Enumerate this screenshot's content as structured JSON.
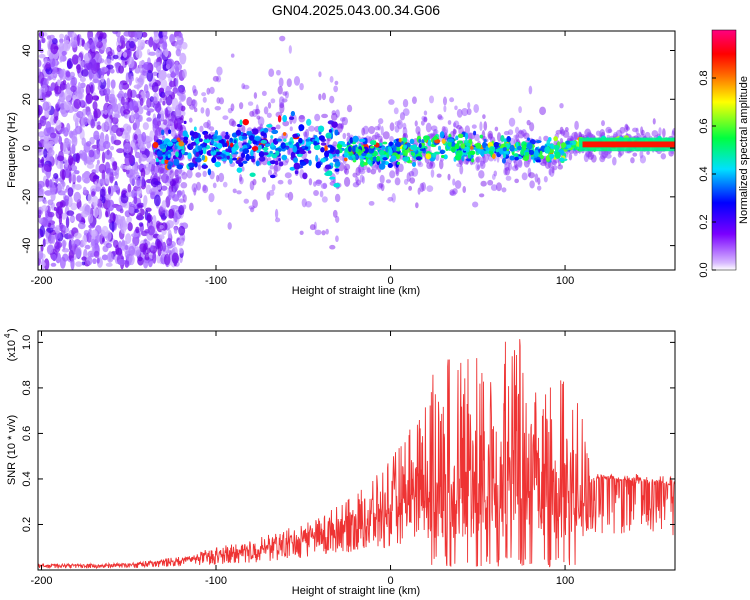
{
  "title": "GN04.2025.043.00.34.G06",
  "colors": {
    "snr_line": "#ee3333",
    "spec_low": "#7a00ff",
    "spec_mid": "#00e0c0",
    "spec_high": "#ff0000"
  },
  "chart_data": [
    {
      "type": "heatmap",
      "xlabel": "Height of straight line (km)",
      "ylabel": "Frequency (Hz)",
      "xlim": [
        -202,
        163
      ],
      "ylim": [
        -50,
        48
      ],
      "xticks": [
        -200,
        -100,
        0,
        100
      ],
      "yticks": [
        -40,
        -20,
        0,
        20,
        40
      ],
      "colorbar": {
        "label": "Normalized spectral amplitude",
        "range": [
          0.0,
          1.0
        ],
        "ticks": [
          "0.0",
          "0.2",
          "0.4",
          "0.6",
          "0.8"
        ],
        "tick_values": [
          0.0,
          0.2,
          0.4,
          0.6,
          0.8
        ],
        "colormap": "rainbow (violet-blue-cyan-green-yellow-red-magenta)"
      },
      "regions": [
        {
          "x_range": [
            -202,
            -118
          ],
          "freq_spread": 48,
          "amplitude": 0.05
        },
        {
          "x_range": [
            -135,
            -30
          ],
          "freq_spread": 10,
          "amplitude": 0.35
        },
        {
          "x_range": [
            -30,
            100
          ],
          "freq_spread": 5,
          "amplitude": 0.45
        },
        {
          "x_range": [
            100,
            163
          ],
          "freq_center": 1.5,
          "freq_spread": 1.5,
          "amplitude": 0.9
        }
      ]
    },
    {
      "type": "line",
      "xlabel": "Height of straight line (km)",
      "ylabel": "SNR (10 * v/v)",
      "scale_label": "(x10",
      "scale_exponent": "4",
      "xlim": [
        -202,
        163
      ],
      "ylim": [
        0.0,
        1.05
      ],
      "xticks": [
        -200,
        -100,
        0,
        100
      ],
      "yticks": [
        0.2,
        0.4,
        0.6,
        0.8,
        1.0
      ],
      "ytick_labels": [
        "0.2",
        "0.4",
        "0.6",
        "0.8",
        "1.0"
      ],
      "envelope": {
        "x": [
          -202,
          -150,
          -120,
          -100,
          -80,
          -60,
          -40,
          -20,
          0,
          10,
          20,
          30,
          50,
          70,
          90,
          110,
          115,
          120,
          140,
          163
        ],
        "y_median": [
          0.02,
          0.02,
          0.04,
          0.06,
          0.08,
          0.11,
          0.15,
          0.2,
          0.25,
          0.3,
          0.33,
          0.35,
          0.35,
          0.36,
          0.34,
          0.33,
          0.38,
          0.4,
          0.39,
          0.37
        ],
        "y_max": [
          0.025,
          0.03,
          0.06,
          0.1,
          0.13,
          0.18,
          0.24,
          0.33,
          0.48,
          0.62,
          0.8,
          1.02,
          0.95,
          1.04,
          0.92,
          0.72,
          0.42,
          0.42,
          0.41,
          0.39
        ]
      }
    }
  ]
}
